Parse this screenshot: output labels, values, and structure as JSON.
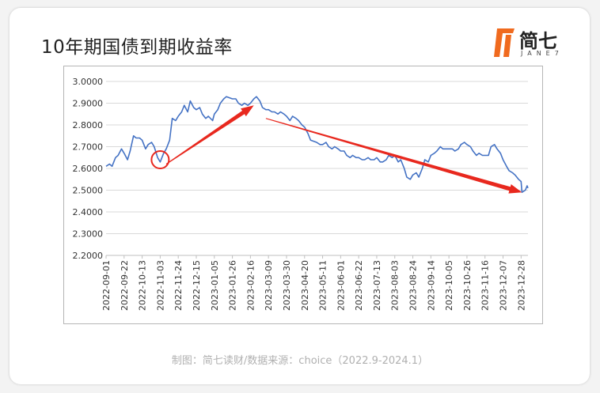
{
  "title": "10年期国债到期收益率",
  "logo": {
    "name": "简七",
    "sub": "JANE7",
    "mark_color": "#f06a1e"
  },
  "footer": "制图：简七读财/数据来源：choice（2022.9-2024.1）",
  "colors": {
    "line": "#4472c4",
    "arrow": "#e8281e",
    "circle": "#e8281e",
    "grid": "#d9d9d9",
    "axis_text": "#333333"
  },
  "chart_data": {
    "type": "line",
    "title": "",
    "xlabel": "",
    "ylabel": "",
    "ylim": [
      2.2,
      3.0
    ],
    "yticks": [
      "2.2000",
      "2.3000",
      "2.4000",
      "2.5000",
      "2.6000",
      "2.7000",
      "2.8000",
      "2.9000",
      "3.0000"
    ],
    "ytick_values": [
      2.2,
      2.3,
      2.4,
      2.5,
      2.6,
      2.7,
      2.8,
      2.9,
      3.0
    ],
    "grid": "horizontal",
    "x_dates": [
      "2022-09-01",
      "2024-01-05"
    ],
    "xticks": [
      "2022-09-01",
      "2022-09-22",
      "2022-10-13",
      "2022-11-03",
      "2022-11-24",
      "2022-12-15",
      "2023-01-05",
      "2023-01-26",
      "2023-02-16",
      "2023-03-09",
      "2023-03-30",
      "2023-04-20",
      "2023-05-11",
      "2023-06-01",
      "2023-06-22",
      "2023-07-13",
      "2023-08-03",
      "2023-08-24",
      "2023-09-14",
      "2023-10-05",
      "2023-10-26",
      "2023-11-16",
      "2023-12-07",
      "2023-12-28"
    ],
    "series": [
      {
        "values": [
          [
            "2022-09-01",
            2.61
          ],
          [
            "2022-09-05",
            2.62
          ],
          [
            "2022-09-08",
            2.61
          ],
          [
            "2022-09-12",
            2.65
          ],
          [
            "2022-09-15",
            2.66
          ],
          [
            "2022-09-19",
            2.69
          ],
          [
            "2022-09-22",
            2.67
          ],
          [
            "2022-09-26",
            2.64
          ],
          [
            "2022-09-29",
            2.68
          ],
          [
            "2022-10-03",
            2.75
          ],
          [
            "2022-10-06",
            2.74
          ],
          [
            "2022-10-10",
            2.74
          ],
          [
            "2022-10-13",
            2.73
          ],
          [
            "2022-10-17",
            2.69
          ],
          [
            "2022-10-20",
            2.71
          ],
          [
            "2022-10-24",
            2.72
          ],
          [
            "2022-10-27",
            2.7
          ],
          [
            "2022-10-31",
            2.65
          ],
          [
            "2022-11-03",
            2.63
          ],
          [
            "2022-11-07",
            2.67
          ],
          [
            "2022-11-10",
            2.69
          ],
          [
            "2022-11-14",
            2.73
          ],
          [
            "2022-11-17",
            2.83
          ],
          [
            "2022-11-21",
            2.82
          ],
          [
            "2022-11-24",
            2.84
          ],
          [
            "2022-11-28",
            2.86
          ],
          [
            "2022-12-01",
            2.89
          ],
          [
            "2022-12-05",
            2.86
          ],
          [
            "2022-12-08",
            2.91
          ],
          [
            "2022-12-12",
            2.88
          ],
          [
            "2022-12-15",
            2.87
          ],
          [
            "2022-12-19",
            2.88
          ],
          [
            "2022-12-22",
            2.85
          ],
          [
            "2022-12-26",
            2.83
          ],
          [
            "2022-12-29",
            2.84
          ],
          [
            "2023-01-03",
            2.82
          ],
          [
            "2023-01-05",
            2.85
          ],
          [
            "2023-01-09",
            2.87
          ],
          [
            "2023-01-12",
            2.9
          ],
          [
            "2023-01-16",
            2.92
          ],
          [
            "2023-01-19",
            2.93
          ],
          [
            "2023-01-26",
            2.92
          ],
          [
            "2023-01-30",
            2.92
          ],
          [
            "2023-02-02",
            2.9
          ],
          [
            "2023-02-06",
            2.89
          ],
          [
            "2023-02-09",
            2.9
          ],
          [
            "2023-02-13",
            2.89
          ],
          [
            "2023-02-16",
            2.9
          ],
          [
            "2023-02-20",
            2.92
          ],
          [
            "2023-02-23",
            2.93
          ],
          [
            "2023-02-27",
            2.91
          ],
          [
            "2023-03-02",
            2.88
          ],
          [
            "2023-03-06",
            2.87
          ],
          [
            "2023-03-09",
            2.87
          ],
          [
            "2023-03-13",
            2.86
          ],
          [
            "2023-03-16",
            2.86
          ],
          [
            "2023-03-20",
            2.85
          ],
          [
            "2023-03-23",
            2.86
          ],
          [
            "2023-03-27",
            2.85
          ],
          [
            "2023-03-30",
            2.84
          ],
          [
            "2023-04-03",
            2.82
          ],
          [
            "2023-04-06",
            2.84
          ],
          [
            "2023-04-10",
            2.83
          ],
          [
            "2023-04-13",
            2.82
          ],
          [
            "2023-04-17",
            2.8
          ],
          [
            "2023-04-20",
            2.79
          ],
          [
            "2023-04-24",
            2.76
          ],
          [
            "2023-04-27",
            2.73
          ],
          [
            "2023-05-04",
            2.72
          ],
          [
            "2023-05-08",
            2.71
          ],
          [
            "2023-05-11",
            2.71
          ],
          [
            "2023-05-15",
            2.72
          ],
          [
            "2023-05-18",
            2.7
          ],
          [
            "2023-05-22",
            2.69
          ],
          [
            "2023-05-25",
            2.7
          ],
          [
            "2023-05-29",
            2.69
          ],
          [
            "2023-06-01",
            2.68
          ],
          [
            "2023-06-05",
            2.68
          ],
          [
            "2023-06-08",
            2.66
          ],
          [
            "2023-06-12",
            2.65
          ],
          [
            "2023-06-15",
            2.66
          ],
          [
            "2023-06-19",
            2.65
          ],
          [
            "2023-06-22",
            2.65
          ],
          [
            "2023-06-26",
            2.64
          ],
          [
            "2023-06-29",
            2.64
          ],
          [
            "2023-07-03",
            2.65
          ],
          [
            "2023-07-06",
            2.64
          ],
          [
            "2023-07-10",
            2.64
          ],
          [
            "2023-07-13",
            2.65
          ],
          [
            "2023-07-17",
            2.63
          ],
          [
            "2023-07-20",
            2.63
          ],
          [
            "2023-07-24",
            2.64
          ],
          [
            "2023-07-27",
            2.66
          ],
          [
            "2023-07-31",
            2.65
          ],
          [
            "2023-08-03",
            2.66
          ],
          [
            "2023-08-07",
            2.63
          ],
          [
            "2023-08-10",
            2.64
          ],
          [
            "2023-08-14",
            2.6
          ],
          [
            "2023-08-17",
            2.56
          ],
          [
            "2023-08-21",
            2.55
          ],
          [
            "2023-08-24",
            2.57
          ],
          [
            "2023-08-28",
            2.58
          ],
          [
            "2023-08-31",
            2.56
          ],
          [
            "2023-09-04",
            2.6
          ],
          [
            "2023-09-07",
            2.64
          ],
          [
            "2023-09-11",
            2.63
          ],
          [
            "2023-09-14",
            2.66
          ],
          [
            "2023-09-18",
            2.67
          ],
          [
            "2023-09-21",
            2.68
          ],
          [
            "2023-09-25",
            2.7
          ],
          [
            "2023-09-28",
            2.69
          ],
          [
            "2023-10-05",
            2.69
          ],
          [
            "2023-10-09",
            2.69
          ],
          [
            "2023-10-12",
            2.68
          ],
          [
            "2023-10-16",
            2.69
          ],
          [
            "2023-10-19",
            2.71
          ],
          [
            "2023-10-23",
            2.72
          ],
          [
            "2023-10-26",
            2.71
          ],
          [
            "2023-10-30",
            2.7
          ],
          [
            "2023-11-02",
            2.68
          ],
          [
            "2023-11-06",
            2.66
          ],
          [
            "2023-11-09",
            2.67
          ],
          [
            "2023-11-13",
            2.66
          ],
          [
            "2023-11-16",
            2.66
          ],
          [
            "2023-11-20",
            2.66
          ],
          [
            "2023-11-23",
            2.7
          ],
          [
            "2023-11-27",
            2.71
          ],
          [
            "2023-11-30",
            2.69
          ],
          [
            "2023-12-04",
            2.67
          ],
          [
            "2023-12-07",
            2.64
          ],
          [
            "2023-12-11",
            2.61
          ],
          [
            "2023-12-14",
            2.59
          ],
          [
            "2023-12-18",
            2.58
          ],
          [
            "2023-12-21",
            2.57
          ],
          [
            "2023-12-25",
            2.55
          ],
          [
            "2023-12-28",
            2.54
          ],
          [
            "2023-12-29",
            2.49
          ],
          [
            "2024-01-02",
            2.5
          ],
          [
            "2024-01-04",
            2.52
          ],
          [
            "2024-01-05",
            2.51
          ]
        ]
      }
    ],
    "annotations": [
      {
        "type": "circle",
        "at": [
          "2022-11-03",
          2.64
        ]
      },
      {
        "type": "arrow",
        "from": [
          "2022-11-10",
          2.62
        ],
        "to": [
          "2023-02-20",
          2.89
        ]
      },
      {
        "type": "arrow",
        "from": [
          "2023-03-06",
          2.83
        ],
        "to": [
          "2023-12-29",
          2.49
        ]
      }
    ]
  }
}
